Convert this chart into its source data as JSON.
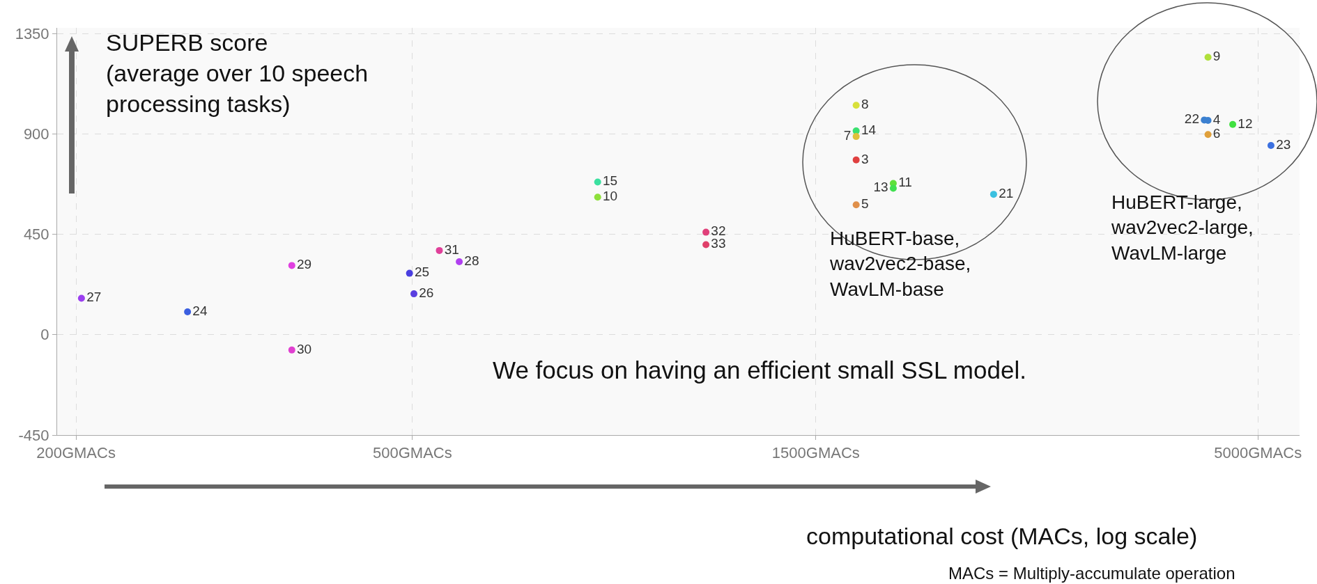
{
  "chart_data": {
    "type": "scatter",
    "xlabel": "computational cost (MACs, log scale)",
    "ylabel": "SUPERB score\n(average over 10 speech\nprocessing tasks)",
    "log": "x",
    "grid": true,
    "legend": false,
    "marker": "circle",
    "xlim": [
      190,
      5600
    ],
    "xticks": [
      {
        "value": 200,
        "label": "200GMACs"
      },
      {
        "value": 500,
        "label": "500GMACs"
      },
      {
        "value": 1500,
        "label": "1500GMACs"
      },
      {
        "value": 5000,
        "label": "5000GMACs"
      }
    ],
    "ylim": [
      -450,
      1375
    ],
    "yticks": [
      -450,
      0,
      450,
      900,
      1350
    ],
    "series": [
      {
        "name": "27",
        "color": "#9b3ff0",
        "x": [
          203
        ],
        "values": [
          163
        ]
      },
      {
        "name": "24",
        "color": "#3b5fe0",
        "x": [
          271
        ],
        "values": [
          102
        ]
      },
      {
        "name": "29",
        "color": "#e040e0",
        "x": [
          360
        ],
        "values": [
          310
        ]
      },
      {
        "name": "30",
        "color": "#e040d0",
        "x": [
          360
        ],
        "values": [
          -69
        ]
      },
      {
        "name": "25",
        "color": "#4a3fe0",
        "x": [
          496
        ],
        "values": [
          275
        ]
      },
      {
        "name": "26",
        "color": "#5a3fe0",
        "x": [
          502
        ],
        "values": [
          183
        ]
      },
      {
        "name": "31",
        "color": "#e0409a",
        "x": [
          538
        ],
        "values": [
          377
        ]
      },
      {
        "name": "28",
        "color": "#b040f0",
        "x": [
          568
        ],
        "values": [
          327
        ]
      },
      {
        "name": "15",
        "color": "#3be0a0",
        "x": [
          828
        ],
        "values": [
          684
        ]
      },
      {
        "name": "10",
        "color": "#8ee03b",
        "x": [
          828
        ],
        "values": [
          616
        ]
      },
      {
        "name": "32",
        "color": "#e0407a",
        "x": [
          1112
        ],
        "values": [
          459
        ]
      },
      {
        "name": "33",
        "color": "#e0406a",
        "x": [
          1112
        ],
        "values": [
          403
        ]
      },
      {
        "name": "8",
        "color": "#d8e03b",
        "x": [
          1674
        ],
        "values": [
          1028
        ]
      },
      {
        "name": "14",
        "color": "#3be070",
        "x": [
          1674
        ],
        "values": [
          913
        ]
      },
      {
        "name": "7",
        "color": "#e0c03b",
        "x": [
          1674
        ],
        "values": [
          888
        ]
      },
      {
        "name": "3",
        "color": "#e04040",
        "x": [
          1674
        ],
        "values": [
          783
        ]
      },
      {
        "name": "11",
        "color": "#5ee03b",
        "x": [
          1852
        ],
        "values": [
          678
        ]
      },
      {
        "name": "13",
        "color": "#40e050",
        "x": [
          1852
        ],
        "values": [
          656
        ]
      },
      {
        "name": "5",
        "color": "#e0904b",
        "x": [
          1674
        ],
        "values": [
          582
        ]
      },
      {
        "name": "21",
        "color": "#3bc0e0",
        "x": [
          2434
        ],
        "values": [
          629
        ]
      },
      {
        "name": "9",
        "color": "#b0e03b",
        "x": [
          4364
        ],
        "values": [
          1243
        ]
      },
      {
        "name": "4",
        "color": "#3b80d0",
        "x": [
          4364
        ],
        "values": [
          960
        ]
      },
      {
        "name": "22",
        "color": "#3b80d0",
        "x": [
          4320
        ],
        "values": [
          962
        ]
      },
      {
        "name": "6",
        "color": "#e0a03b",
        "x": [
          4364
        ],
        "values": [
          897
        ]
      },
      {
        "name": "12",
        "color": "#40e040",
        "x": [
          4668
        ],
        "values": [
          942
        ]
      },
      {
        "name": "23",
        "color": "#3b70e0",
        "x": [
          5180
        ],
        "values": [
          848
        ]
      }
    ],
    "annotations": [
      "HuBERT-base,\nwav2vec2-base,\nWavLM-base",
      "HuBERT-large,\nwav2vec2-large,\nWavLM-large",
      "We focus on having an efficient small SSL model.",
      "MACs = Multiply-accumulate operation"
    ]
  }
}
